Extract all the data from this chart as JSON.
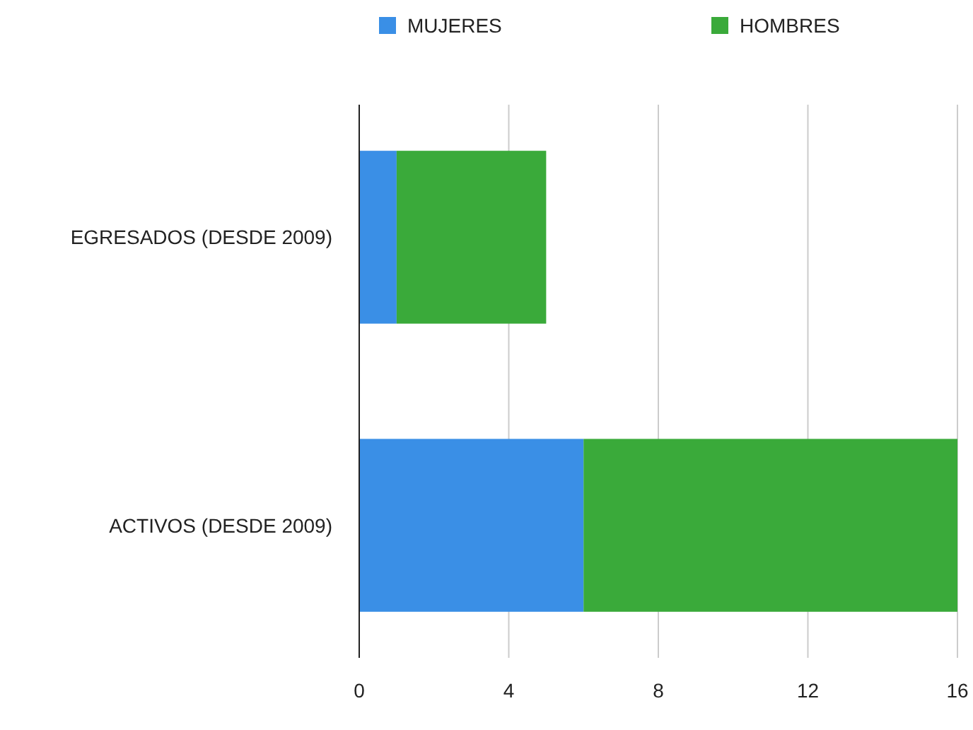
{
  "chart_data": {
    "type": "bar",
    "orientation": "horizontal",
    "stacked": true,
    "categories": [
      "EGRESADOS (DESDE 2009)",
      "ACTIVOS (DESDE 2009)"
    ],
    "series": [
      {
        "name": "MUJERES",
        "color": "#3a8fe6",
        "values": [
          1,
          6
        ]
      },
      {
        "name": "HOMBRES",
        "color": "#3aaa3a",
        "values": [
          4,
          10
        ]
      }
    ],
    "xlim": [
      0,
      16
    ],
    "xticks": [
      0,
      4,
      8,
      12,
      16
    ],
    "grid": "x",
    "legend": "top"
  }
}
